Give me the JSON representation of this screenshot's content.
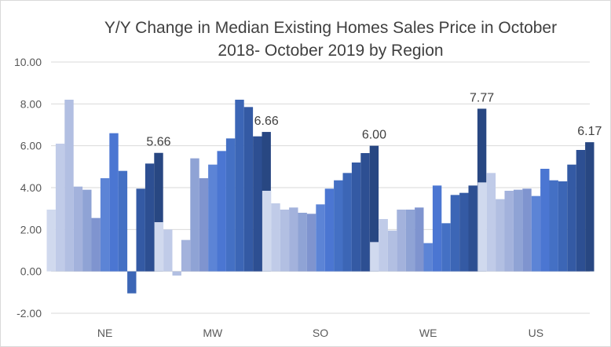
{
  "chart_data": {
    "type": "bar",
    "title": "Y/Y Change in Median Existing Homes Sales Price in October 2018- October 2019 by Region",
    "title_lines": [
      "Y/Y Change in Median Existing Homes Sales Price in October",
      "2018- October 2019 by Region"
    ],
    "xlabel": "",
    "ylabel": "",
    "ylim": [
      -2,
      10
    ],
    "yticks": [
      -2,
      0,
      2,
      4,
      6,
      8,
      10
    ],
    "ytick_labels": [
      "-2.00",
      "0.00",
      "2.00",
      "4.00",
      "6.00",
      "8.00",
      "10.00"
    ],
    "grid": true,
    "legend": "none",
    "categories": [
      "NE",
      "MW",
      "SO",
      "WE",
      "US"
    ],
    "series": [
      {
        "values": [
          2.95,
          2.35,
          3.85,
          1.4,
          4.25
        ]
      },
      {
        "values": [
          6.1,
          2.0,
          3.25,
          2.5,
          4.7
        ]
      },
      {
        "values": [
          8.2,
          -0.2,
          2.95,
          1.95,
          3.45
        ]
      },
      {
        "values": [
          4.05,
          1.5,
          3.05,
          2.95,
          3.85
        ]
      },
      {
        "values": [
          3.9,
          5.4,
          2.8,
          2.95,
          3.9
        ]
      },
      {
        "values": [
          2.55,
          4.45,
          2.75,
          3.05,
          3.95
        ]
      },
      {
        "values": [
          4.45,
          5.1,
          3.2,
          1.35,
          3.6
        ]
      },
      {
        "values": [
          6.6,
          5.75,
          3.95,
          4.1,
          4.9
        ]
      },
      {
        "values": [
          4.8,
          6.35,
          4.35,
          2.3,
          4.35
        ]
      },
      {
        "values": [
          -1.05,
          8.2,
          4.7,
          3.65,
          4.3
        ]
      },
      {
        "values": [
          3.95,
          7.85,
          5.2,
          3.75,
          5.1
        ]
      },
      {
        "values": [
          5.15,
          6.45,
          5.65,
          4.1,
          5.8
        ]
      },
      {
        "values": [
          5.66,
          6.66,
          6.0,
          7.77,
          6.17
        ]
      }
    ],
    "data_labels": [
      "5.66",
      "6.66",
      "6.00",
      "7.77",
      "6.17"
    ],
    "colors": [
      "#d0d9ee",
      "#c0cbe8",
      "#b2bfe2",
      "#a3b2dc",
      "#8fa3d5",
      "#7f94cf",
      "#5c84d6",
      "#4b76d2",
      "#4470c4",
      "#3c66b6",
      "#345aa4",
      "#2d4f92",
      "#284782"
    ],
    "gridline_color": "#d9d9d9"
  }
}
